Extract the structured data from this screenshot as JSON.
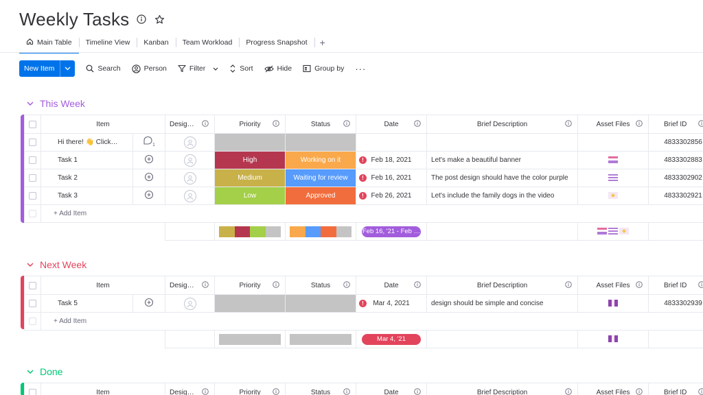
{
  "board": {
    "title": "Weekly Tasks"
  },
  "tabs": [
    {
      "label": "Main Table",
      "icon": "home-icon"
    },
    {
      "label": "Timeline View"
    },
    {
      "label": "Kanban"
    },
    {
      "label": "Team Workload"
    },
    {
      "label": "Progress Snapshot"
    }
  ],
  "tab_add": "+",
  "toolbar": {
    "new_item": "New Item",
    "search": "Search",
    "person": "Person",
    "filter": "Filter",
    "sort": "Sort",
    "hide": "Hide",
    "group_by": "Group by",
    "more": "···"
  },
  "columns": [
    "Item",
    "Desig…",
    "Priority",
    "Status",
    "Date",
    "Brief Description",
    "Asset Files",
    "Brief ID"
  ],
  "add_item": "+ Add Item",
  "colors": {
    "accent": "#0073ea",
    "purple": "#a25ddc",
    "red": "#e2445c",
    "green": "#00c875",
    "high": "#b5374f",
    "medium": "#c9b14a",
    "low": "#a4cf49",
    "working": "#f9a94b",
    "review": "#579bfc",
    "approved": "#f26d3d",
    "empty": "#c4c4c4"
  },
  "groups": {
    "this_week": {
      "title": "This Week",
      "rows": [
        {
          "item": "Hi there! 👋 Click…",
          "priority": "",
          "status": "",
          "date": "",
          "desc": "",
          "id": "4833302856",
          "update_count": "1"
        },
        {
          "item": "Task 1",
          "priority": "High",
          "status": "Working on it",
          "date": "Feb 18, 2021",
          "desc": "Let's make a beautiful banner",
          "id": "4833302883"
        },
        {
          "item": "Task 2",
          "priority": "Medium",
          "status": "Waiting for review",
          "date": "Feb 16, 2021",
          "desc": "The post design should have the color purple",
          "id": "4833302902"
        },
        {
          "item": "Task 3",
          "priority": "Low",
          "status": "Approved",
          "date": "Feb 26, 2021",
          "desc": "Let's include the family dogs in the video",
          "id": "4833302921"
        }
      ],
      "date_summary": "Feb 16, '21 - Feb …"
    },
    "next_week": {
      "title": "Next Week",
      "rows": [
        {
          "item": "Task 5",
          "priority": "",
          "status": "",
          "date": "Mar 4, 2021",
          "desc": "design should be simple and concise",
          "id": "4833302939"
        }
      ],
      "date_summary": "Mar 4, '21"
    },
    "done": {
      "title": "Done"
    }
  }
}
